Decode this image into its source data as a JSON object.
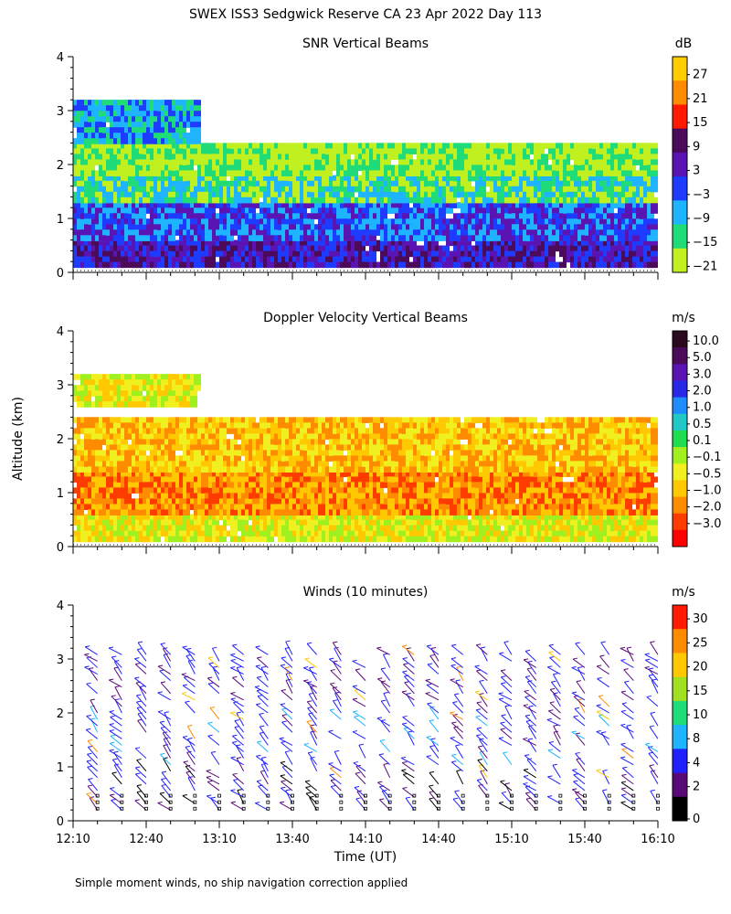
{
  "figure": {
    "title": "SWEX ISS3 Sedgwick Reserve CA  23 Apr 2022 Day 113",
    "ylabel": "Altitude (km)",
    "xlabel": "Time (UT)",
    "footnote": "Simple moment winds, no ship navigation correction applied",
    "x_ticks": [
      "12:10",
      "12:40",
      "13:10",
      "13:40",
      "14:10",
      "14:40",
      "15:10",
      "15:40",
      "16:10"
    ],
    "y_ticks": [
      "0",
      "1",
      "2",
      "3",
      "4"
    ]
  },
  "chart_data": [
    {
      "type": "heatmap",
      "title": "SNR Vertical Beams",
      "units": "dB",
      "xlim": [
        "12:10",
        "16:10"
      ],
      "ylim": [
        0,
        4
      ],
      "colorbar": {
        "labels": [
          "27",
          "21",
          "15",
          "9",
          "3",
          "−3",
          "−9",
          "−15",
          "−21"
        ],
        "colors": [
          "#ffcc00",
          "#ff8c00",
          "#ff1a00",
          "#4b0a5a",
          "#5a14b4",
          "#1e3cff",
          "#1eb4ff",
          "#20dc78",
          "#c0f020"
        ]
      },
      "layers": [
        {
          "band_km": [
            0.15,
            0.6
          ],
          "value_dB": 6,
          "description": "strongest near surface"
        },
        {
          "band_km": [
            0.6,
            1.3
          ],
          "value_dB": -3
        },
        {
          "band_km": [
            1.3,
            1.8
          ],
          "value_dB": -15
        },
        {
          "band_km": [
            1.8,
            2.4
          ],
          "value_dB": -18
        },
        {
          "band_km": [
            2.4,
            3.2
          ],
          "value_dB": -10,
          "time_range": [
            "12:10",
            "13:00"
          ]
        }
      ]
    },
    {
      "type": "heatmap",
      "title": "Doppler Velocity Vertical Beams",
      "units": "m/s",
      "xlim": [
        "12:10",
        "16:10"
      ],
      "ylim": [
        0,
        4
      ],
      "colorbar": {
        "labels": [
          "10.0",
          "5.0",
          "3.0",
          "2.0",
          "1.0",
          "0.5",
          "0.1",
          "−0.1",
          "−0.5",
          "−1.0",
          "−2.0",
          "−3.0"
        ],
        "colors": [
          "#2a0a1e",
          "#4b0a5a",
          "#5a14b4",
          "#2828e6",
          "#1e8cff",
          "#20c8c8",
          "#20dc50",
          "#a0f020",
          "#f0f020",
          "#ffc800",
          "#ff8c00",
          "#ff3c00",
          "#ff0000"
        ]
      },
      "layers": [
        {
          "band_km": [
            0.15,
            0.6
          ],
          "value_ms": -0.3
        },
        {
          "band_km": [
            0.6,
            1.4
          ],
          "value_ms": -1.0
        },
        {
          "band_km": [
            1.4,
            2.4
          ],
          "value_ms": -0.4
        },
        {
          "band_km": [
            2.6,
            3.2
          ],
          "value_ms": -0.1,
          "time_range": [
            "12:10",
            "13:00"
          ]
        }
      ]
    },
    {
      "type": "scatter",
      "title": "Winds (10 minutes)",
      "units": "m/s",
      "xlim": [
        "12:10",
        "16:10"
      ],
      "ylim": [
        0,
        4
      ],
      "colorbar": {
        "labels": [
          "30",
          "25",
          "20",
          "15",
          "10",
          "8",
          "4",
          "2",
          "0"
        ],
        "colors": [
          "#ff1a00",
          "#ff8c00",
          "#ffc800",
          "#a0e020",
          "#20dc78",
          "#1eb4ff",
          "#2020ff",
          "#5a0a78",
          "#000000"
        ]
      },
      "profile_times": [
        "12:20",
        "12:30",
        "12:40",
        "12:50",
        "13:00",
        "13:10",
        "13:20",
        "13:30",
        "13:40",
        "13:50",
        "14:00",
        "14:10",
        "14:20",
        "14:30",
        "14:40",
        "14:50",
        "15:00",
        "15:10",
        "15:20",
        "15:30",
        "15:40",
        "15:50",
        "16:00",
        "16:10"
      ],
      "typical_speed_ms": {
        "0-1km": 4,
        "1-2km": 6,
        "2-3km": 5
      },
      "typical_direction": "northwest"
    }
  ]
}
